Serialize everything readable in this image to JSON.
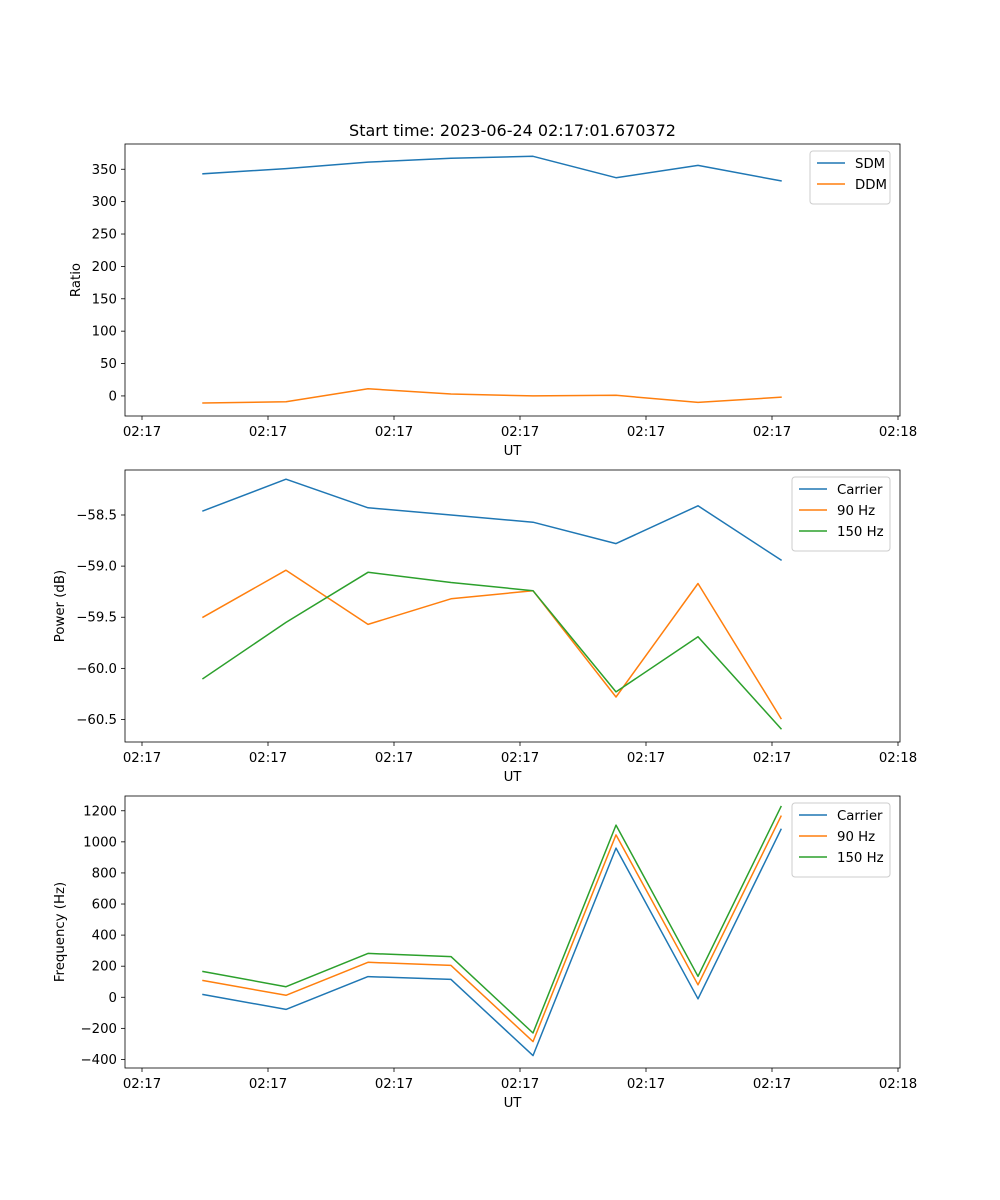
{
  "figure_title": "Start time: 2023-06-24 02:17:01.670372",
  "chart_data": [
    {
      "type": "line",
      "title": "Start time: 2023-06-24 02:17:01.670372",
      "xlabel": "UT",
      "ylabel": "Ratio",
      "x_tick_labels": [
        "02:17",
        "02:17",
        "02:17",
        "02:17",
        "02:17",
        "02:17",
        "02:18"
      ],
      "y_ticks": [
        0,
        50,
        100,
        150,
        200,
        250,
        300,
        350
      ],
      "y_tick_labels": [
        "0",
        "50",
        "100",
        "150",
        "200",
        "250",
        "300",
        "350"
      ],
      "ylim": [
        -31,
        389
      ],
      "legend": "top-right",
      "grid": false,
      "series": [
        {
          "name": "SDM",
          "color": "#1f77b4",
          "values": [
            343,
            351,
            361,
            367,
            370,
            337,
            356,
            332
          ]
        },
        {
          "name": "DDM",
          "color": "#ff7f0e",
          "values": [
            -11,
            -9,
            11,
            3,
            0,
            1,
            -10,
            -2
          ]
        }
      ]
    },
    {
      "type": "line",
      "title": "",
      "xlabel": "UT",
      "ylabel": "Power (dB)",
      "x_tick_labels": [
        "02:17",
        "02:17",
        "02:17",
        "02:17",
        "02:17",
        "02:17",
        "02:18"
      ],
      "y_ticks": [
        -60.5,
        -60.0,
        -59.5,
        -59.0,
        -58.5
      ],
      "y_tick_labels": [
        "−60.5",
        "−60.0",
        "−59.5",
        "−59.0",
        "−58.5"
      ],
      "ylim": [
        -60.72,
        -58.06
      ],
      "legend": "top-right",
      "grid": false,
      "series": [
        {
          "name": "Carrier",
          "color": "#1f77b4",
          "values": [
            -58.46,
            -58.15,
            -58.43,
            -58.5,
            -58.57,
            -58.78,
            -58.41,
            -58.94
          ]
        },
        {
          "name": "90 Hz",
          "color": "#ff7f0e",
          "values": [
            -59.5,
            -59.04,
            -59.57,
            -59.32,
            -59.24,
            -60.28,
            -59.17,
            -60.49
          ]
        },
        {
          "name": "150 Hz",
          "color": "#2ca02c",
          "values": [
            -60.1,
            -59.55,
            -59.06,
            -59.16,
            -59.24,
            -60.23,
            -59.69,
            -60.59
          ]
        }
      ]
    },
    {
      "type": "line",
      "title": "",
      "xlabel": "UT",
      "ylabel": "Frequency (Hz)",
      "x_tick_labels": [
        "02:17",
        "02:17",
        "02:17",
        "02:17",
        "02:17",
        "02:17",
        "02:18"
      ],
      "y_ticks": [
        -400,
        -200,
        0,
        200,
        400,
        600,
        800,
        1000,
        1200
      ],
      "y_tick_labels": [
        "−400",
        "−200",
        "0",
        "200",
        "400",
        "600",
        "800",
        "1000",
        "1200"
      ],
      "ylim": [
        -455,
        1295
      ],
      "legend": "top-right",
      "grid": false,
      "series": [
        {
          "name": "Carrier",
          "color": "#1f77b4",
          "values": [
            18,
            -78,
            133,
            115,
            -375,
            960,
            -10,
            1080
          ]
        },
        {
          "name": "90 Hz",
          "color": "#ff7f0e",
          "values": [
            108,
            13,
            225,
            205,
            -285,
            1045,
            80,
            1165
          ]
        },
        {
          "name": "150 Hz",
          "color": "#2ca02c",
          "values": [
            166,
            68,
            282,
            262,
            -230,
            1108,
            135,
            1227
          ]
        }
      ]
    }
  ]
}
